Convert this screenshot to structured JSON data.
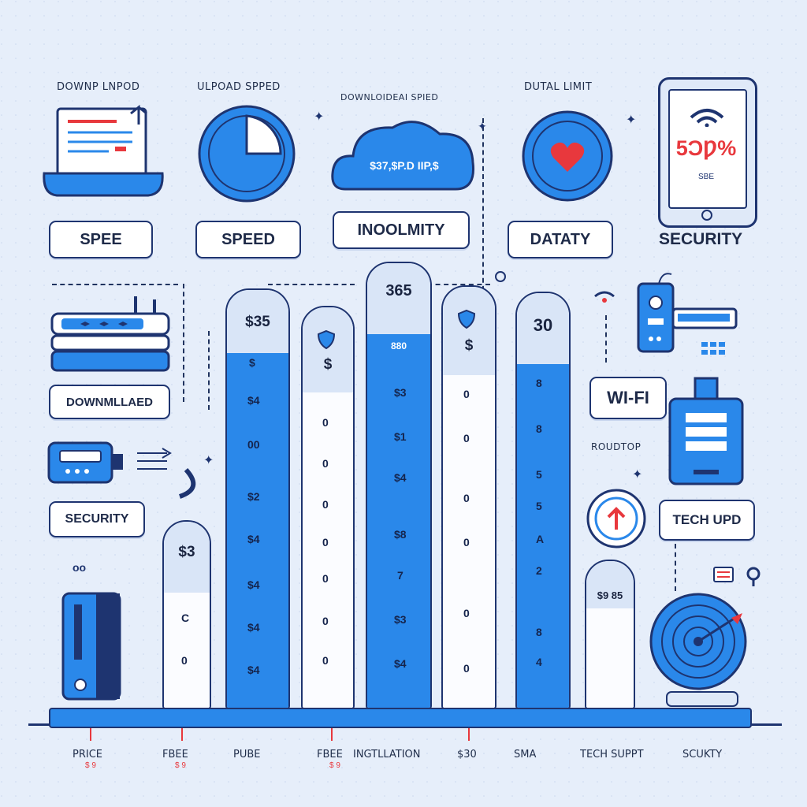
{
  "top_captions": {
    "c1": "DOWNP LNPOD",
    "c2": "ULPOAD SPPED",
    "c3": "DOWNLOIDEAI SPIED",
    "c4": "DUTAL LIMIT"
  },
  "cloud_text": "$37,$P.D IIP,$",
  "tablet": {
    "percent": "5ƆǷ%",
    "sub": "SBE"
  },
  "pills": {
    "spee": "SPEE",
    "speed": "SPEED",
    "inoolmity": "INOOLMITY",
    "dataty": "DATATY",
    "security_top": "SECURITY",
    "downloaded": "DOWNMLLAED",
    "security_left": "SECURITY",
    "wifi": "WI-FI",
    "tech_upd": "TECH UPD",
    "roudtop": "ROUDTOP"
  },
  "bars": [
    {
      "label": "$3",
      "ticks": [
        "C",
        "0"
      ]
    },
    {
      "label": "$35",
      "ticks": [
        "$",
        "$4",
        "00",
        "$2",
        "$4",
        "$4",
        "$4",
        "$4"
      ]
    },
    {
      "label": "$",
      "ticks": [
        "0",
        "0",
        "0",
        "0",
        "0",
        "0",
        "0"
      ]
    },
    {
      "label": "365",
      "sub": "880",
      "ticks": [
        "$3",
        "$1",
        "$4",
        "$8",
        "7",
        "$3",
        "$4"
      ]
    },
    {
      "label": "$",
      "ticks": [
        "0",
        "0",
        "0",
        "0",
        "0",
        "0"
      ]
    },
    {
      "label": "30",
      "ticks": [
        "8",
        "8",
        "5",
        "5",
        "A",
        "2",
        "8",
        "4"
      ]
    },
    {
      "label": "$9 85"
    }
  ],
  "axis_labels": [
    "PRICE",
    "FBEE",
    "PUBE",
    "FBEE",
    "INGTLLATION",
    "$30",
    "SMA",
    "TECH SUPPT",
    "SCUKTY"
  ],
  "axis_sub": [
    "$ 9",
    "$ 9",
    "$ 9"
  ],
  "colors": {
    "accent": "#2a88ea",
    "navy": "#1e3470",
    "background": "#e6eefa",
    "alert": "#e8383d"
  }
}
